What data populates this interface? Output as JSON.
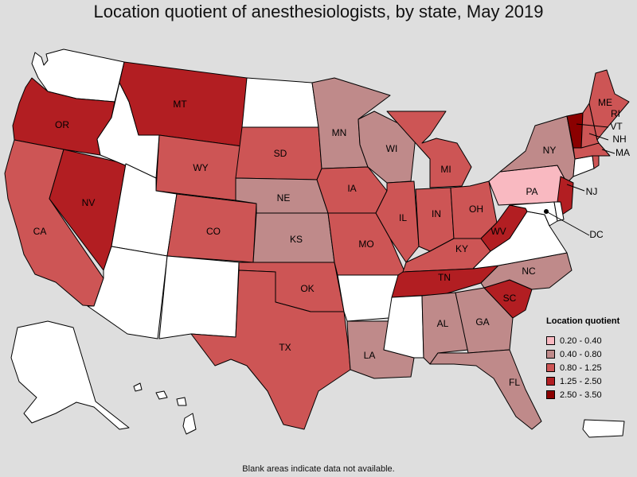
{
  "title": "Location quotient of anesthesiologists, by state, May 2019",
  "footnote": "Blank areas indicate data not available.",
  "legend": {
    "title": "Location quotient",
    "items": [
      {
        "label": "0.20 - 0.40",
        "color": "#f9b9c1"
      },
      {
        "label": "0.40 - 0.80",
        "color": "#bf8a8a"
      },
      {
        "label": "0.80 - 1.25",
        "color": "#cd5555"
      },
      {
        "label": "1.25 - 2.50",
        "color": "#b21e22"
      },
      {
        "label": "2.50 - 3.50",
        "color": "#8b0000"
      }
    ]
  },
  "colors": {
    "background": "#dedede",
    "no_data": "#ffffff",
    "border": "#000000"
  },
  "states": [
    {
      "abbr": "WA",
      "class": null
    },
    {
      "abbr": "OR",
      "class": "1.25 - 2.50"
    },
    {
      "abbr": "CA",
      "class": "0.80 - 1.25"
    },
    {
      "abbr": "NV",
      "class": "1.25 - 2.50"
    },
    {
      "abbr": "ID",
      "class": null
    },
    {
      "abbr": "MT",
      "class": "1.25 - 2.50"
    },
    {
      "abbr": "WY",
      "class": "0.80 - 1.25"
    },
    {
      "abbr": "UT",
      "class": null
    },
    {
      "abbr": "AZ",
      "class": null
    },
    {
      "abbr": "CO",
      "class": "0.80 - 1.25"
    },
    {
      "abbr": "NM",
      "class": null
    },
    {
      "abbr": "ND",
      "class": null
    },
    {
      "abbr": "SD",
      "class": "0.80 - 1.25"
    },
    {
      "abbr": "NE",
      "class": "0.40 - 0.80"
    },
    {
      "abbr": "KS",
      "class": "0.40 - 0.80"
    },
    {
      "abbr": "OK",
      "class": "0.80 - 1.25"
    },
    {
      "abbr": "TX",
      "class": "0.80 - 1.25"
    },
    {
      "abbr": "MN",
      "class": "0.40 - 0.80"
    },
    {
      "abbr": "IA",
      "class": "0.80 - 1.25"
    },
    {
      "abbr": "MO",
      "class": "0.80 - 1.25"
    },
    {
      "abbr": "AR",
      "class": null
    },
    {
      "abbr": "LA",
      "class": "0.40 - 0.80"
    },
    {
      "abbr": "WI",
      "class": "0.40 - 0.80"
    },
    {
      "abbr": "IL",
      "class": "0.80 - 1.25"
    },
    {
      "abbr": "MI",
      "class": "0.80 - 1.25"
    },
    {
      "abbr": "IN",
      "class": "0.80 - 1.25"
    },
    {
      "abbr": "OH",
      "class": "0.80 - 1.25"
    },
    {
      "abbr": "KY",
      "class": "0.80 - 1.25"
    },
    {
      "abbr": "TN",
      "class": "1.25 - 2.50"
    },
    {
      "abbr": "MS",
      "class": null
    },
    {
      "abbr": "AL",
      "class": "0.40 - 0.80"
    },
    {
      "abbr": "GA",
      "class": "0.40 - 0.80"
    },
    {
      "abbr": "FL",
      "class": "0.40 - 0.80"
    },
    {
      "abbr": "SC",
      "class": "1.25 - 2.50"
    },
    {
      "abbr": "NC",
      "class": "0.40 - 0.80"
    },
    {
      "abbr": "VA",
      "class": null
    },
    {
      "abbr": "WV",
      "class": "1.25 - 2.50"
    },
    {
      "abbr": "PA",
      "class": "0.20 - 0.40"
    },
    {
      "abbr": "NY",
      "class": "0.40 - 0.80"
    },
    {
      "abbr": "NJ",
      "class": "1.25 - 2.50"
    },
    {
      "abbr": "DE",
      "class": null
    },
    {
      "abbr": "MD",
      "class": null
    },
    {
      "abbr": "DC",
      "class": null
    },
    {
      "abbr": "CT",
      "class": null
    },
    {
      "abbr": "RI",
      "class": "0.80 - 1.25"
    },
    {
      "abbr": "MA",
      "class": "0.80 - 1.25"
    },
    {
      "abbr": "VT",
      "class": "2.50 - 3.50"
    },
    {
      "abbr": "NH",
      "class": "0.80 - 1.25"
    },
    {
      "abbr": "ME",
      "class": "0.80 - 1.25"
    },
    {
      "abbr": "AK",
      "class": null
    },
    {
      "abbr": "HI",
      "class": null
    },
    {
      "abbr": "PR",
      "class": null
    }
  ]
}
